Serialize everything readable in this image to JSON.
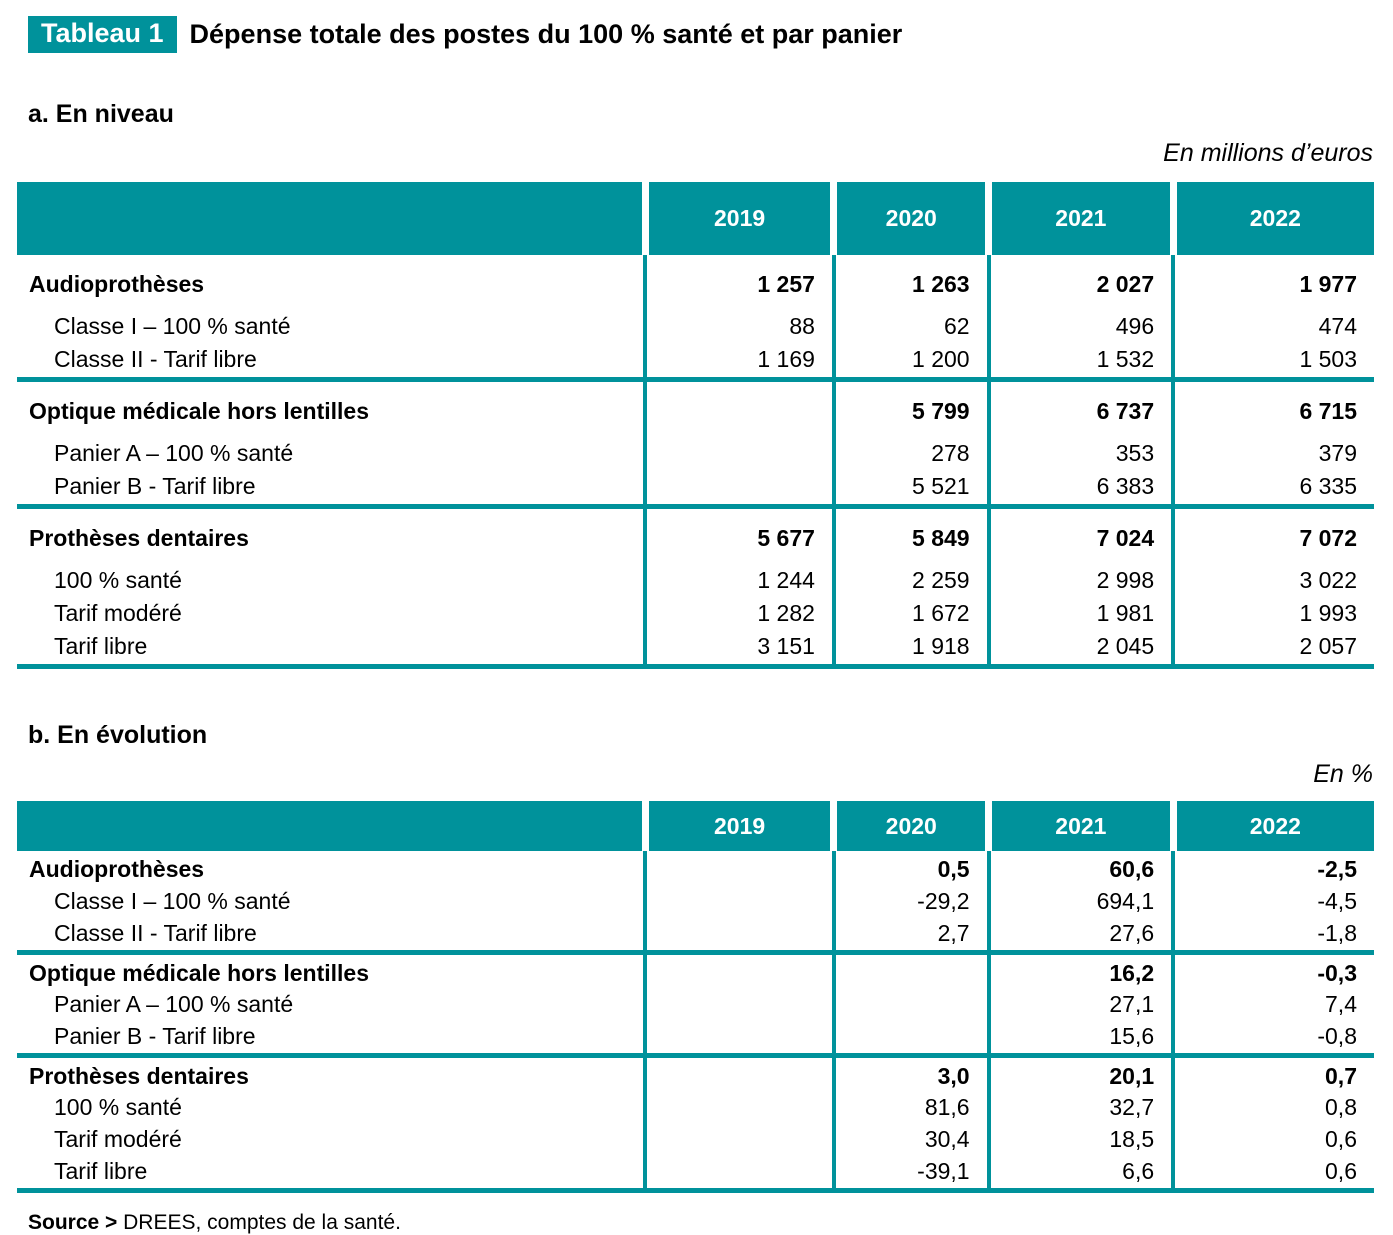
{
  "badge": "Tableau 1",
  "title": "Dépense totale des postes du 100 % santé et par panier",
  "accent_color": "#00929B",
  "sections": [
    {
      "heading": "a. En niveau",
      "unit": "En millions d’euros",
      "columns": [
        "2019",
        "2020",
        "2021",
        "2022"
      ],
      "groups": [
        {
          "label": "Audioprothèses",
          "values": [
            "1 257",
            "1 263",
            "2 027",
            "1 977"
          ],
          "rows": [
            {
              "label": "Classe I – 100 % santé",
              "values": [
                "88",
                "62",
                "496",
                "474"
              ]
            },
            {
              "label": "Classe II - Tarif libre",
              "values": [
                "1 169",
                "1 200",
                "1 532",
                "1 503"
              ]
            }
          ]
        },
        {
          "label": "Optique médicale hors lentilles",
          "values": [
            "",
            "5 799",
            "6 737",
            "6 715"
          ],
          "rows": [
            {
              "label": "Panier A – 100 % santé",
              "values": [
                "",
                "278",
                "353",
                "379"
              ]
            },
            {
              "label": "Panier B - Tarif libre",
              "values": [
                "",
                "5 521",
                "6 383",
                "6 335"
              ]
            }
          ]
        },
        {
          "label": "Prothèses dentaires",
          "values": [
            "5 677",
            "5 849",
            "7 024",
            "7 072"
          ],
          "rows": [
            {
              "label": "100 % santé",
              "values": [
                "1 244",
                "2 259",
                "2 998",
                "3 022"
              ]
            },
            {
              "label": "Tarif modéré",
              "values": [
                "1 282",
                "1 672",
                "1 981",
                "1 993"
              ]
            },
            {
              "label": "Tarif libre",
              "values": [
                "3 151",
                "1 918",
                "2 045",
                "2 057"
              ]
            }
          ]
        }
      ]
    },
    {
      "heading": "b. En évolution",
      "unit": "En %",
      "columns": [
        "2019",
        "2020",
        "2021",
        "2022"
      ],
      "groups": [
        {
          "label": "Audioprothèses",
          "values": [
            "",
            "0,5",
            "60,6",
            "-2,5"
          ],
          "rows": [
            {
              "label": "Classe I – 100 % santé",
              "values": [
                "",
                "-29,2",
                "694,1",
                "-4,5"
              ]
            },
            {
              "label": "Classe II - Tarif libre",
              "values": [
                "",
                "2,7",
                "27,6",
                "-1,8"
              ]
            }
          ]
        },
        {
          "label": "Optique médicale hors lentilles",
          "values": [
            "",
            "",
            "16,2",
            "-0,3"
          ],
          "rows": [
            {
              "label": "Panier A – 100 % santé",
              "values": [
                "",
                "",
                "27,1",
                "7,4"
              ]
            },
            {
              "label": "Panier B - Tarif libre",
              "values": [
                "",
                "",
                "15,6",
                "-0,8"
              ]
            }
          ]
        },
        {
          "label": "Prothèses dentaires",
          "values": [
            "",
            "3,0",
            "20,1",
            "0,7"
          ],
          "rows": [
            {
              "label": "100 % santé",
              "values": [
                "",
                "81,6",
                "32,7",
                "0,8"
              ]
            },
            {
              "label": "Tarif modéré",
              "values": [
                "",
                "30,4",
                "18,5",
                "0,6"
              ]
            },
            {
              "label": "Tarif libre",
              "values": [
                "",
                "-39,1",
                "6,6",
                "0,6"
              ]
            }
          ]
        }
      ]
    }
  ],
  "source": {
    "label": "Source >",
    "text": "DREES, comptes de la santé."
  }
}
